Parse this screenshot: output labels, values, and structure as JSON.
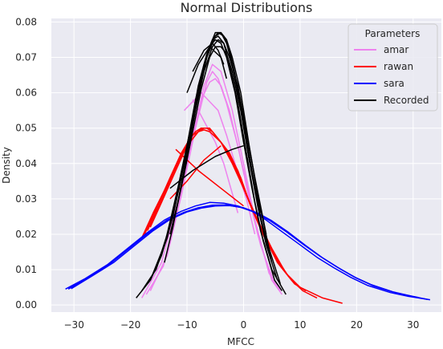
{
  "chart_data": {
    "type": "line",
    "title": "Normal Distributions",
    "xlabel": "MFCC",
    "ylabel": "Density",
    "xlim": [
      -34,
      35
    ],
    "ylim": [
      -0.002,
      0.081
    ],
    "xticks": [
      "−30",
      "−20",
      "−10",
      "0",
      "10",
      "20",
      "30"
    ],
    "xtick_values": [
      -30,
      -20,
      -10,
      0,
      10,
      20,
      30
    ],
    "yticks": [
      "0.00",
      "0.01",
      "0.02",
      "0.03",
      "0.04",
      "0.05",
      "0.06",
      "0.07",
      "0.08"
    ],
    "ytick_values": [
      0,
      0.01,
      0.02,
      0.03,
      0.04,
      0.05,
      0.06,
      0.07,
      0.08
    ],
    "grid": true,
    "background": "#eaeaf2",
    "legend": {
      "title": "Parameters",
      "placement": "top-right"
    },
    "series": [
      {
        "name": "amar",
        "color": "#ee82ee",
        "lines": [
          {
            "x": [
              -18.0,
              -14.5,
              -11.5,
              -9.5,
              -7.5,
              -6.0,
              -5.0,
              -4.0,
              -2.5,
              0.0,
              2.5,
              5.0,
              6.8
            ],
            "y": [
              0.002,
              0.012,
              0.03,
              0.045,
              0.058,
              0.063,
              0.064,
              0.062,
              0.055,
              0.038,
              0.02,
              0.007,
              0.003
            ]
          },
          {
            "x": [
              -17.2,
              -14.2,
              -11.5,
              -9.0,
              -7.0,
              -5.5,
              -4.0,
              -2.0,
              0.0,
              2.0,
              4.5,
              6.5
            ],
            "y": [
              0.003,
              0.011,
              0.028,
              0.047,
              0.062,
              0.068,
              0.066,
              0.055,
              0.04,
              0.024,
              0.009,
              0.004
            ]
          },
          {
            "x": [
              -16.5,
              -13.5,
              -11.0,
              -8.5,
              -6.5,
              -5.5,
              -4.5,
              -3.0,
              -1.0,
              1.0,
              3.0,
              5.5
            ],
            "y": [
              0.004,
              0.014,
              0.031,
              0.05,
              0.063,
              0.066,
              0.064,
              0.057,
              0.045,
              0.03,
              0.017,
              0.006
            ]
          },
          {
            "x": [
              -10.5,
              -7.5,
              -4.5,
              -3.0,
              -1.5,
              0.5,
              2.0
            ],
            "y": [
              0.055,
              0.06,
              0.055,
              0.048,
              0.04,
              0.03,
              0.02
            ]
          },
          {
            "x": [
              -9.0,
              -7.0,
              -5.0,
              -3.5,
              -1.0
            ],
            "y": [
              0.058,
              0.052,
              0.046,
              0.04,
              0.026
            ]
          }
        ]
      },
      {
        "name": "rawan",
        "color": "#ff0000",
        "lines": [
          {
            "x": [
              -18.0,
              -16.0,
              -13.5,
              -11.5,
              -10.0,
              -9.0,
              -8.0,
              -7.0,
              -6.0,
              -4.0,
              -2.0,
              0.0,
              2.5,
              5.0,
              7.5,
              10.0,
              14.0,
              17.5
            ],
            "y": [
              0.019,
              0.026,
              0.034,
              0.041,
              0.045,
              0.048,
              0.049,
              0.0495,
              0.049,
              0.046,
              0.04,
              0.033,
              0.024,
              0.016,
              0.009,
              0.005,
              0.002,
              0.0005
            ]
          },
          {
            "x": [
              -17.5,
              -15.5,
              -13.0,
              -11.0,
              -9.5,
              -8.5,
              -7.5,
              -6.5,
              -5.5,
              -3.5,
              -1.5,
              0.5,
              3.0,
              5.5,
              8.0,
              10.0
            ],
            "y": [
              0.02,
              0.027,
              0.036,
              0.043,
              0.047,
              0.049,
              0.05,
              0.05,
              0.049,
              0.045,
              0.039,
              0.031,
              0.022,
              0.014,
              0.008,
              0.005
            ]
          },
          {
            "x": [
              -17.0,
              -15.0,
              -12.5,
              -10.5,
              -9.0,
              -8.0,
              -7.0,
              -6.0,
              -5.0,
              -3.0,
              -1.0,
              1.0,
              3.5,
              6.0,
              8.5,
              10.5,
              13.0
            ],
            "y": [
              0.021,
              0.028,
              0.037,
              0.044,
              0.047,
              0.049,
              0.05,
              0.05,
              0.048,
              0.044,
              0.038,
              0.029,
              0.02,
              0.012,
              0.007,
              0.004,
              0.002
            ]
          },
          {
            "x": [
              -16.5,
              -14.5,
              -12.0,
              -10.0,
              -8.5,
              -7.5,
              -6.5,
              -5.5,
              -4.5,
              -2.5,
              -0.5,
              1.5,
              4.0,
              6.5,
              9.0,
              11.0
            ],
            "y": [
              0.022,
              0.029,
              0.038,
              0.045,
              0.048,
              0.05,
              0.05,
              0.049,
              0.047,
              0.043,
              0.036,
              0.027,
              0.018,
              0.011,
              0.006,
              0.004
            ]
          },
          {
            "x": [
              -12.0,
              -8.0,
              -4.0,
              0.0
            ],
            "y": [
              0.044,
              0.038,
              0.033,
              0.028
            ]
          },
          {
            "x": [
              -13.0,
              -10.0,
              -7.0,
              -4.0
            ],
            "y": [
              0.03,
              0.035,
              0.041,
              0.045
            ]
          }
        ]
      },
      {
        "name": "sara",
        "color": "#0000ff",
        "lines": [
          {
            "x": [
              -31.5,
              -28.0,
              -24.0,
              -20.5,
              -17.0,
              -14.0,
              -11.0,
              -8.5,
              -6.0,
              -3.5,
              -1.0,
              1.5,
              4.0,
              7.0,
              10.0,
              13.0,
              16.0,
              19.0,
              22.0,
              26.0,
              29.0,
              33.0
            ],
            "y": [
              0.0045,
              0.0075,
              0.0115,
              0.016,
              0.0205,
              0.024,
              0.0265,
              0.028,
              0.029,
              0.0288,
              0.028,
              0.0265,
              0.024,
              0.0205,
              0.017,
              0.0135,
              0.0105,
              0.0078,
              0.0055,
              0.0035,
              0.0025,
              0.0015
            ]
          },
          {
            "x": [
              -31.0,
              -27.5,
              -23.5,
              -20.0,
              -16.5,
              -13.5,
              -10.5,
              -8.0,
              -5.5,
              -3.0,
              -0.5,
              2.0,
              4.5,
              7.5,
              10.5,
              13.5,
              16.5,
              19.5,
              22.5,
              26.5,
              30.0,
              32.5
            ],
            "y": [
              0.0045,
              0.0078,
              0.0118,
              0.0163,
              0.0208,
              0.024,
              0.0262,
              0.0275,
              0.0282,
              0.0283,
              0.0276,
              0.0262,
              0.024,
              0.0208,
              0.0172,
              0.0138,
              0.0108,
              0.008,
              0.0058,
              0.0037,
              0.0024,
              0.0016
            ]
          },
          {
            "x": [
              -30.5,
              -27.0,
              -23.0,
              -19.5,
              -16.0,
              -13.0,
              -10.0,
              -7.5,
              -5.0,
              -2.5,
              0.0,
              2.5,
              5.0,
              8.0,
              11.0,
              14.0,
              17.0,
              20.0,
              23.0,
              27.0,
              31.0
            ],
            "y": [
              0.0046,
              0.008,
              0.012,
              0.0165,
              0.021,
              0.0242,
              0.0263,
              0.0274,
              0.028,
              0.0281,
              0.0275,
              0.026,
              0.0238,
              0.0205,
              0.0168,
              0.0133,
              0.0103,
              0.0076,
              0.0054,
              0.0034,
              0.0021
            ]
          }
        ]
      },
      {
        "name": "Recorded",
        "color": "#000000",
        "lines": [
          {
            "x": [
              -19.0,
              -16.5,
              -14.0,
              -12.0,
              -10.0,
              -8.5,
              -7.0,
              -6.0,
              -5.0,
              -4.0,
              -3.0,
              -1.5,
              0.0,
              1.5,
              3.0,
              5.0,
              7.5
            ],
            "y": [
              0.002,
              0.007,
              0.017,
              0.03,
              0.045,
              0.058,
              0.068,
              0.073,
              0.075,
              0.074,
              0.07,
              0.06,
              0.046,
              0.033,
              0.021,
              0.01,
              0.003
            ]
          },
          {
            "x": [
              -18.0,
              -15.5,
              -13.5,
              -11.5,
              -9.5,
              -8.0,
              -6.5,
              -5.5,
              -4.5,
              -3.5,
              -2.5,
              -1.0,
              0.5,
              2.0,
              3.5,
              5.5,
              6.8
            ],
            "y": [
              0.004,
              0.01,
              0.02,
              0.034,
              0.049,
              0.062,
              0.071,
              0.075,
              0.076,
              0.074,
              0.068,
              0.057,
              0.043,
              0.029,
              0.018,
              0.007,
              0.004
            ]
          },
          {
            "x": [
              -16.5,
              -14.5,
              -12.5,
              -11.0,
              -9.0,
              -7.5,
              -6.0,
              -5.0,
              -4.0,
              -3.0,
              -2.0,
              -0.5,
              1.0,
              2.5,
              4.0,
              6.0
            ],
            "y": [
              0.007,
              0.014,
              0.025,
              0.036,
              0.052,
              0.064,
              0.073,
              0.077,
              0.077,
              0.074,
              0.068,
              0.056,
              0.041,
              0.028,
              0.017,
              0.007
            ]
          },
          {
            "x": [
              -15.5,
              -13.5,
              -12.0,
              -10.0,
              -8.5,
              -7.0,
              -5.5,
              -4.5,
              -3.5,
              -2.5,
              -1.5,
              0.0,
              1.5,
              3.0,
              5.0
            ],
            "y": [
              0.01,
              0.019,
              0.029,
              0.044,
              0.057,
              0.068,
              0.075,
              0.077,
              0.076,
              0.072,
              0.065,
              0.052,
              0.038,
              0.025,
              0.012
            ]
          },
          {
            "x": [
              -14.0,
              -12.5,
              -11.0,
              -9.5,
              -8.0,
              -6.5,
              -5.0,
              -4.0,
              -3.0,
              -2.0,
              -0.5,
              1.0,
              2.5,
              4.5,
              6.5
            ],
            "y": [
              0.012,
              0.022,
              0.034,
              0.047,
              0.06,
              0.07,
              0.076,
              0.077,
              0.075,
              0.07,
              0.06,
              0.045,
              0.031,
              0.016,
              0.006
            ]
          },
          {
            "x": [
              -13.0,
              -11.5,
              -10.0,
              -8.5,
              -7.0,
              -5.5,
              -4.5,
              -3.5,
              -2.5,
              -1.0,
              0.5,
              2.0,
              4.0
            ],
            "y": [
              0.02,
              0.03,
              0.042,
              0.055,
              0.066,
              0.073,
              0.075,
              0.074,
              0.07,
              0.062,
              0.049,
              0.036,
              0.02
            ]
          },
          {
            "x": [
              -12.0,
              -10.5,
              -9.0,
              -7.5,
              -6.0,
              -5.0,
              -4.0,
              -3.0,
              -2.0,
              -0.5,
              1.0,
              3.0
            ],
            "y": [
              0.026,
              0.037,
              0.049,
              0.061,
              0.07,
              0.073,
              0.073,
              0.071,
              0.066,
              0.055,
              0.041,
              0.026
            ]
          },
          {
            "x": [
              -13.0,
              -9.0,
              -5.0,
              -2.0,
              0.0
            ],
            "y": [
              0.033,
              0.038,
              0.042,
              0.044,
              0.045
            ]
          },
          {
            "x": [
              -10.0,
              -8.0,
              -6.0,
              -4.0,
              -3.0
            ],
            "y": [
              0.06,
              0.068,
              0.073,
              0.07,
              0.064
            ]
          },
          {
            "x": [
              -9.0,
              -7.0,
              -5.5,
              -4.5,
              -3.5
            ],
            "y": [
              0.066,
              0.072,
              0.074,
              0.072,
              0.068
            ]
          }
        ]
      }
    ]
  }
}
